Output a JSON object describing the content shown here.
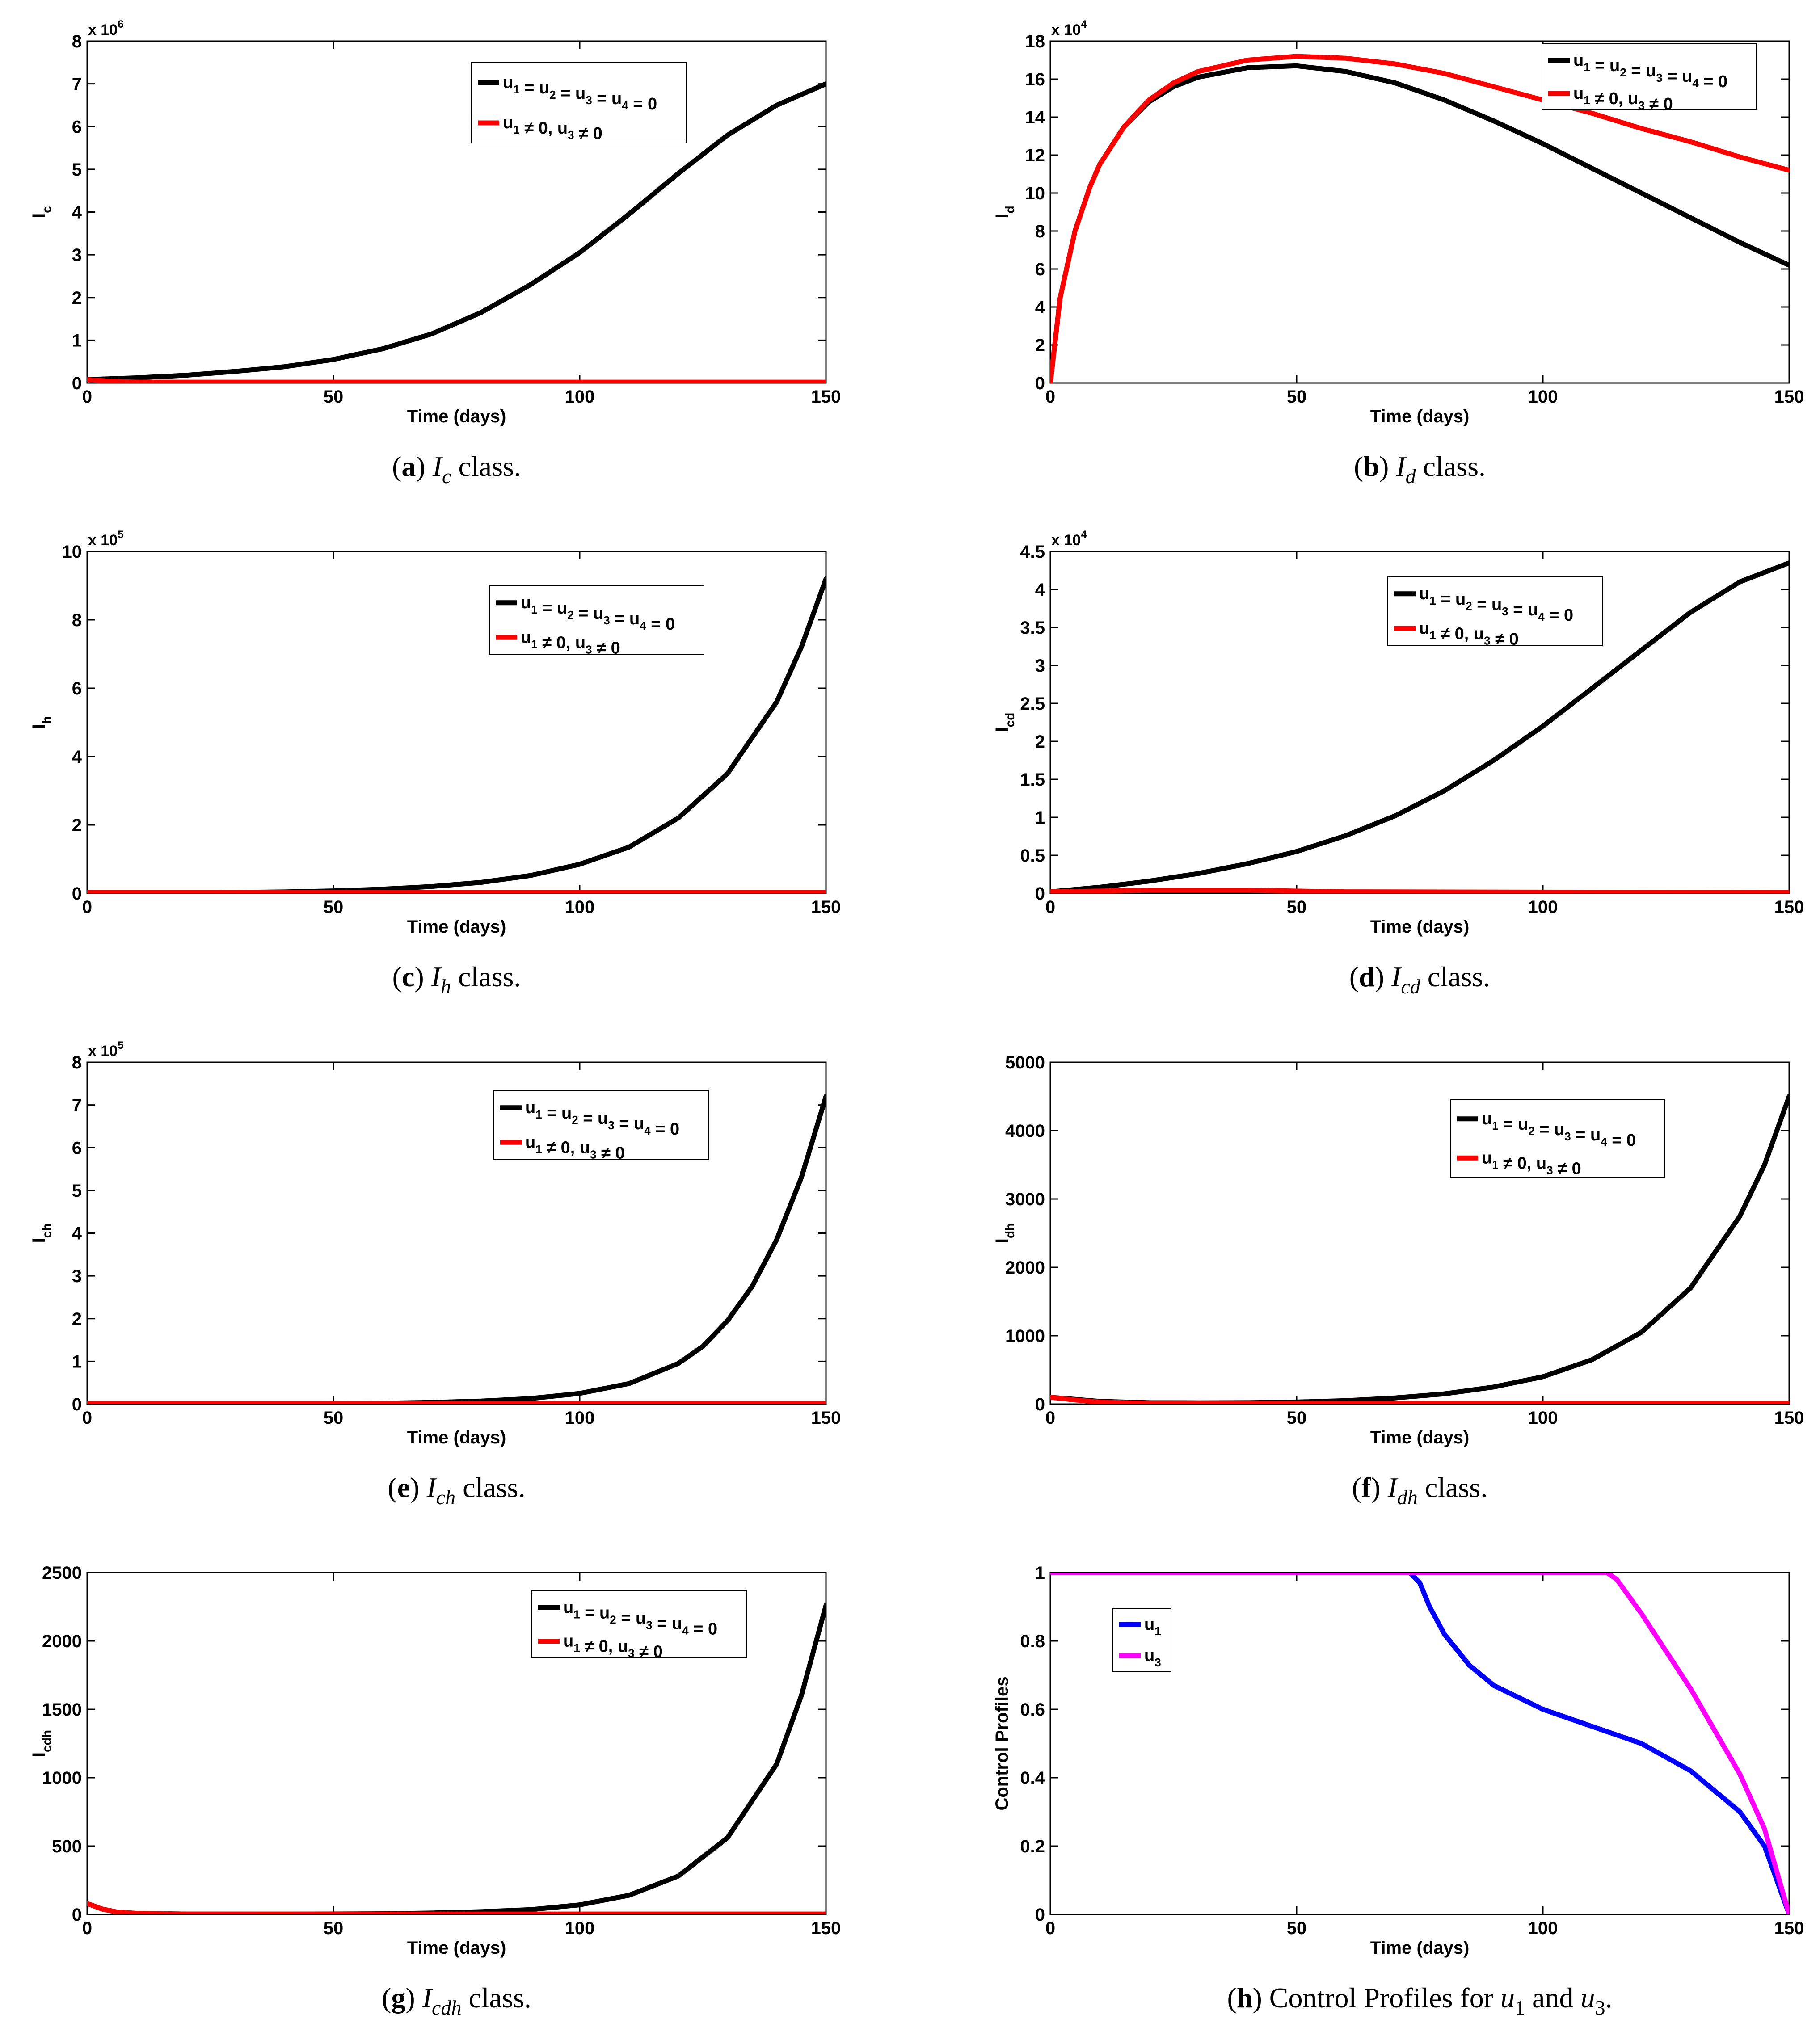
{
  "chart_data": [
    {
      "id": "a",
      "type": "line",
      "title": "",
      "xlabel": "Time (days)",
      "ylabel": "I_c",
      "ylabel_main": "I",
      "ylabel_sub": "c",
      "xlim": [
        0,
        150
      ],
      "ylim": [
        0,
        8
      ],
      "xticks": [
        0,
        50,
        100,
        150
      ],
      "xtick_labels": [
        "0",
        "50",
        "100",
        "150"
      ],
      "yticks": [
        0,
        1,
        2,
        3,
        4,
        5,
        6,
        7,
        8
      ],
      "ytick_labels": [
        "0",
        "1",
        "2",
        "3",
        "4",
        "5",
        "6",
        "7",
        "8"
      ],
      "y_multiplier": "x 10",
      "y_multiplier_exp": "6",
      "legend_position": "top-right",
      "caption": {
        "letter": "a",
        "var_main": "I",
        "var_sub": "c",
        "suffix": " class."
      },
      "series": [
        {
          "name": "u1 = u2 = u3 = u4 = 0",
          "color": "#000000",
          "x": [
            0,
            10,
            20,
            30,
            40,
            50,
            60,
            70,
            80,
            90,
            100,
            110,
            120,
            130,
            140,
            150
          ],
          "y": [
            0.08,
            0.12,
            0.18,
            0.27,
            0.38,
            0.55,
            0.8,
            1.15,
            1.65,
            2.3,
            3.05,
            3.95,
            4.9,
            5.8,
            6.5,
            7.0
          ]
        },
        {
          "name": "u1 ≠ 0, u3 ≠ 0",
          "color": "#ff0000",
          "x": [
            0,
            5,
            10,
            150
          ],
          "y": [
            0.08,
            0.04,
            0.02,
            0.02
          ]
        }
      ]
    },
    {
      "id": "b",
      "type": "line",
      "title": "",
      "xlabel": "Time (days)",
      "ylabel": "I_d",
      "ylabel_main": "I",
      "ylabel_sub": "d",
      "xlim": [
        0,
        150
      ],
      "ylim": [
        0,
        18
      ],
      "xticks": [
        0,
        50,
        100,
        150
      ],
      "xtick_labels": [
        "0",
        "50",
        "100",
        "150"
      ],
      "yticks": [
        0,
        2,
        4,
        6,
        8,
        10,
        12,
        14,
        16,
        18
      ],
      "ytick_labels": [
        "0",
        "2",
        "4",
        "6",
        "8",
        "10",
        "12",
        "14",
        "16",
        "18"
      ],
      "y_multiplier": "x 10",
      "y_multiplier_exp": "4",
      "legend_position": "top-right",
      "caption": {
        "letter": "b",
        "var_main": "I",
        "var_sub": "d",
        "suffix": " class."
      },
      "series": [
        {
          "name": "u1 = u2 = u3 = u4 = 0",
          "color": "#000000",
          "x": [
            0,
            2,
            5,
            8,
            10,
            15,
            20,
            25,
            30,
            40,
            50,
            60,
            70,
            80,
            90,
            100,
            110,
            120,
            130,
            140,
            150
          ],
          "y": [
            0,
            4.5,
            8.0,
            10.3,
            11.5,
            13.5,
            14.8,
            15.6,
            16.1,
            16.6,
            16.7,
            16.4,
            15.8,
            14.9,
            13.8,
            12.6,
            11.3,
            10.0,
            8.7,
            7.4,
            6.2
          ]
        },
        {
          "name": "u1 ≠ 0, u3 ≠ 0",
          "color": "#ff0000",
          "x": [
            0,
            2,
            5,
            8,
            10,
            15,
            20,
            25,
            30,
            40,
            50,
            60,
            70,
            80,
            90,
            100,
            110,
            120,
            130,
            140,
            150
          ],
          "y": [
            0,
            4.5,
            8.0,
            10.3,
            11.5,
            13.5,
            14.9,
            15.8,
            16.4,
            17.0,
            17.2,
            17.1,
            16.8,
            16.3,
            15.6,
            14.9,
            14.2,
            13.4,
            12.7,
            11.9,
            11.2
          ]
        }
      ]
    },
    {
      "id": "c",
      "type": "line",
      "title": "",
      "xlabel": "Time (days)",
      "ylabel": "I_h",
      "ylabel_main": "I",
      "ylabel_sub": "h",
      "xlim": [
        0,
        150
      ],
      "ylim": [
        0,
        10
      ],
      "xticks": [
        0,
        50,
        100,
        150
      ],
      "xtick_labels": [
        "0",
        "50",
        "100",
        "150"
      ],
      "yticks": [
        0,
        2,
        4,
        6,
        8,
        10
      ],
      "ytick_labels": [
        "0",
        "2",
        "4",
        "6",
        "8",
        "10"
      ],
      "y_multiplier": "x 10",
      "y_multiplier_exp": "5",
      "legend_position": "top-right",
      "caption": {
        "letter": "c",
        "var_main": "I",
        "var_sub": "h",
        "suffix": " class."
      },
      "series": [
        {
          "name": "u1 = u2 = u3 = u4 = 0",
          "color": "#000000",
          "x": [
            0,
            20,
            40,
            50,
            60,
            70,
            80,
            90,
            100,
            110,
            120,
            130,
            140,
            145,
            150
          ],
          "y": [
            0.0,
            0.01,
            0.04,
            0.07,
            0.12,
            0.2,
            0.32,
            0.52,
            0.85,
            1.35,
            2.2,
            3.5,
            5.6,
            7.2,
            9.2
          ]
        },
        {
          "name": "u1 ≠ 0, u3 ≠ 0",
          "color": "#ff0000",
          "x": [
            0,
            150
          ],
          "y": [
            0.02,
            0.02
          ]
        }
      ]
    },
    {
      "id": "d",
      "type": "line",
      "title": "",
      "xlabel": "Time (days)",
      "ylabel": "I_cd",
      "ylabel_main": "I",
      "ylabel_sub": "cd",
      "xlim": [
        0,
        150
      ],
      "ylim": [
        0,
        4.5
      ],
      "xticks": [
        0,
        50,
        100,
        150
      ],
      "xtick_labels": [
        "0",
        "50",
        "100",
        "150"
      ],
      "yticks": [
        0,
        0.5,
        1,
        1.5,
        2,
        2.5,
        3,
        3.5,
        4,
        4.5
      ],
      "ytick_labels": [
        "0",
        "0.5",
        "1",
        "1.5",
        "2",
        "2.5",
        "3",
        "3.5",
        "4",
        "4.5"
      ],
      "y_multiplier": "x 10",
      "y_multiplier_exp": "4",
      "legend_position": "top-right",
      "caption": {
        "letter": "d",
        "var_main": "I",
        "var_sub": "cd",
        "suffix": " class."
      },
      "series": [
        {
          "name": "u1 = u2 = u3 = u4 = 0",
          "color": "#000000",
          "x": [
            0,
            10,
            20,
            30,
            40,
            50,
            60,
            70,
            80,
            90,
            100,
            110,
            120,
            130,
            140,
            150
          ],
          "y": [
            0.02,
            0.08,
            0.16,
            0.26,
            0.39,
            0.55,
            0.76,
            1.02,
            1.35,
            1.75,
            2.2,
            2.7,
            3.2,
            3.7,
            4.1,
            4.35
          ]
        },
        {
          "name": "u1 ≠ 0, u3 ≠ 0",
          "color": "#ff0000",
          "x": [
            0,
            20,
            40,
            60,
            150
          ],
          "y": [
            0.02,
            0.04,
            0.04,
            0.02,
            0.01
          ]
        }
      ]
    },
    {
      "id": "e",
      "type": "line",
      "title": "",
      "xlabel": "Time (days)",
      "ylabel": "I_ch",
      "ylabel_main": "I",
      "ylabel_sub": "ch",
      "xlim": [
        0,
        150
      ],
      "ylim": [
        0,
        8
      ],
      "xticks": [
        0,
        50,
        100,
        150
      ],
      "xtick_labels": [
        "0",
        "50",
        "100",
        "150"
      ],
      "yticks": [
        0,
        1,
        2,
        3,
        4,
        5,
        6,
        7,
        8
      ],
      "ytick_labels": [
        "0",
        "1",
        "2",
        "3",
        "4",
        "5",
        "6",
        "7",
        "8"
      ],
      "y_multiplier": "x 10",
      "y_multiplier_exp": "5",
      "legend_position": "top-right",
      "caption": {
        "letter": "e",
        "var_main": "I",
        "var_sub": "ch",
        "suffix": " class."
      },
      "series": [
        {
          "name": "u1 = u2 = u3 = u4 = 0",
          "color": "#000000",
          "x": [
            0,
            40,
            60,
            70,
            80,
            90,
            100,
            110,
            120,
            125,
            130,
            135,
            140,
            145,
            150
          ],
          "y": [
            0.0,
            0.005,
            0.02,
            0.04,
            0.07,
            0.13,
            0.25,
            0.48,
            0.95,
            1.35,
            1.95,
            2.75,
            3.85,
            5.3,
            7.2
          ]
        },
        {
          "name": "u1 ≠ 0, u3 ≠ 0",
          "color": "#ff0000",
          "x": [
            0,
            150
          ],
          "y": [
            0.01,
            0.01
          ]
        }
      ]
    },
    {
      "id": "f",
      "type": "line",
      "title": "",
      "xlabel": "Time (days)",
      "ylabel": "I_dh",
      "ylabel_main": "I",
      "ylabel_sub": "dh",
      "xlim": [
        0,
        150
      ],
      "ylim": [
        0,
        5000
      ],
      "xticks": [
        0,
        50,
        100,
        150
      ],
      "xtick_labels": [
        "0",
        "50",
        "100",
        "150"
      ],
      "yticks": [
        0,
        1000,
        2000,
        3000,
        4000,
        5000
      ],
      "ytick_labels": [
        "0",
        "1000",
        "2000",
        "3000",
        "4000",
        "5000"
      ],
      "y_multiplier": "",
      "y_multiplier_exp": "",
      "legend_position": "top-right",
      "caption": {
        "letter": "f",
        "var_main": "I",
        "var_sub": "dh",
        "suffix": " class."
      },
      "series": [
        {
          "name": "u1 = u2 = u3 = u4 = 0",
          "color": "#000000",
          "x": [
            0,
            10,
            20,
            30,
            40,
            50,
            60,
            70,
            80,
            90,
            100,
            110,
            120,
            130,
            140,
            145,
            150
          ],
          "y": [
            100,
            40,
            20,
            18,
            20,
            30,
            50,
            90,
            150,
            250,
            400,
            650,
            1050,
            1700,
            2750,
            3500,
            4500
          ]
        },
        {
          "name": "u1 ≠ 0, u3 ≠ 0",
          "color": "#ff0000",
          "x": [
            0,
            5,
            10,
            20,
            150
          ],
          "y": [
            100,
            60,
            30,
            12,
            12
          ]
        }
      ]
    },
    {
      "id": "g",
      "type": "line",
      "title": "",
      "xlabel": "Time (days)",
      "ylabel": "I_cdh",
      "ylabel_main": "I",
      "ylabel_sub": "cdh",
      "xlim": [
        0,
        150
      ],
      "ylim": [
        0,
        2500
      ],
      "xticks": [
        0,
        50,
        100,
        150
      ],
      "xtick_labels": [
        "0",
        "50",
        "100",
        "150"
      ],
      "yticks": [
        0,
        500,
        1000,
        1500,
        2000,
        2500
      ],
      "ytick_labels": [
        "0",
        "500",
        "1000",
        "1500",
        "2000",
        "2500"
      ],
      "y_multiplier": "",
      "y_multiplier_exp": "",
      "legend_position": "top-right",
      "caption": {
        "letter": "g",
        "var_main": "I",
        "var_sub": "cdh",
        "suffix": " class."
      },
      "series": [
        {
          "name": "u1 = u2 = u3 = u4 = 0",
          "color": "#000000",
          "x": [
            0,
            3,
            6,
            10,
            20,
            40,
            60,
            70,
            80,
            90,
            100,
            110,
            120,
            130,
            140,
            145,
            150
          ],
          "y": [
            80,
            40,
            18,
            8,
            3,
            2,
            5,
            10,
            20,
            35,
            70,
            140,
            280,
            560,
            1100,
            1600,
            2260
          ]
        },
        {
          "name": "u1 ≠ 0, u3 ≠ 0",
          "color": "#ff0000",
          "x": [
            0,
            3,
            6,
            10,
            20,
            150
          ],
          "y": [
            80,
            40,
            18,
            8,
            3,
            3
          ]
        }
      ]
    },
    {
      "id": "h",
      "type": "line",
      "title": "",
      "xlabel": "Time (days)",
      "ylabel": "Control Profiles",
      "ylabel_main": "Control Profiles",
      "ylabel_sub": "",
      "xlim": [
        0,
        150
      ],
      "ylim": [
        0,
        1
      ],
      "xticks": [
        0,
        50,
        100,
        150
      ],
      "xtick_labels": [
        "0",
        "50",
        "100",
        "150"
      ],
      "yticks": [
        0,
        0.2,
        0.4,
        0.6,
        0.8,
        1
      ],
      "ytick_labels": [
        "0",
        "0.2",
        "0.4",
        "0.6",
        "0.8",
        "1"
      ],
      "y_multiplier": "",
      "y_multiplier_exp": "",
      "legend_position": "upper-left",
      "caption": {
        "letter": "h",
        "text": " Control Profiles for ",
        "u1": "u",
        "u1_sub": "1",
        "and": " and ",
        "u3": "u",
        "u3_sub": "3",
        "end": "."
      },
      "series": [
        {
          "name": "u1",
          "color": "#0000ff",
          "x": [
            0,
            73,
            75,
            77,
            80,
            85,
            90,
            100,
            110,
            120,
            130,
            140,
            145,
            150
          ],
          "y": [
            1,
            1,
            0.97,
            0.9,
            0.82,
            0.73,
            0.67,
            0.6,
            0.55,
            0.5,
            0.42,
            0.3,
            0.2,
            0.0
          ]
        },
        {
          "name": "u3",
          "color": "#ff00ff",
          "x": [
            0,
            113,
            115,
            120,
            130,
            140,
            145,
            150
          ],
          "y": [
            1,
            1,
            0.98,
            0.88,
            0.66,
            0.41,
            0.25,
            0.0
          ]
        }
      ]
    }
  ]
}
